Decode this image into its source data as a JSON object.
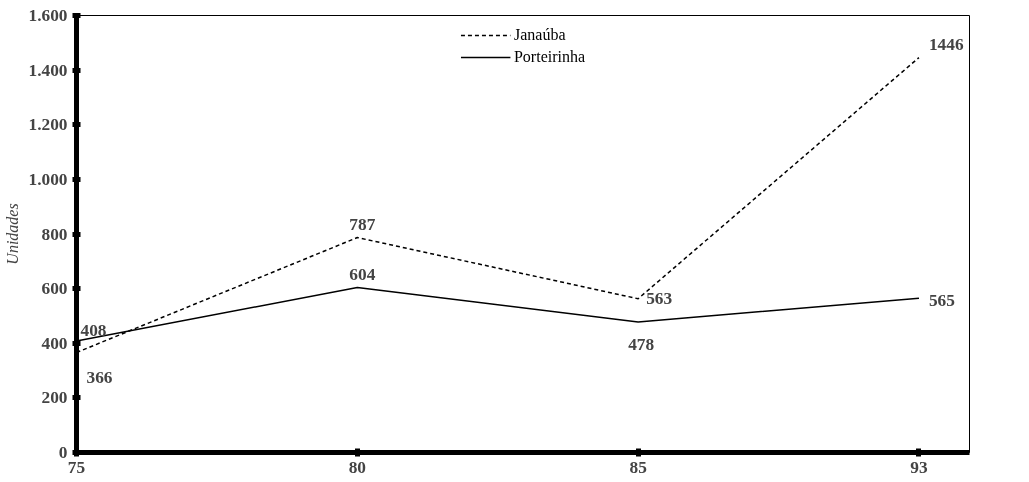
{
  "chart_data": {
    "type": "line",
    "ylabel": "Unidades",
    "categories": [
      "75",
      "80",
      "85",
      "93"
    ],
    "series": [
      {
        "name": "Janaúba",
        "color": "#000000",
        "line_style": "dashed",
        "values": [
          366,
          787,
          563,
          1446
        ]
      },
      {
        "name": "Porteirinha",
        "color": "#000000",
        "line_style": "solid",
        "values": [
          408,
          604,
          478,
          565
        ]
      }
    ],
    "ylim": [
      0,
      1600
    ],
    "yticks": [
      {
        "value": 0,
        "label": "0"
      },
      {
        "value": 200,
        "label": "200"
      },
      {
        "value": 400,
        "label": "400"
      },
      {
        "value": 600,
        "label": "600"
      },
      {
        "value": 800,
        "label": "800"
      },
      {
        "value": 1000,
        "label": "1.000"
      },
      {
        "value": 1200,
        "label": "1.200"
      },
      {
        "value": 1400,
        "label": "1.400"
      },
      {
        "value": 1600,
        "label": "1.600"
      }
    ],
    "data_labels": true,
    "legend": "top",
    "grid": false,
    "marker": "none"
  }
}
